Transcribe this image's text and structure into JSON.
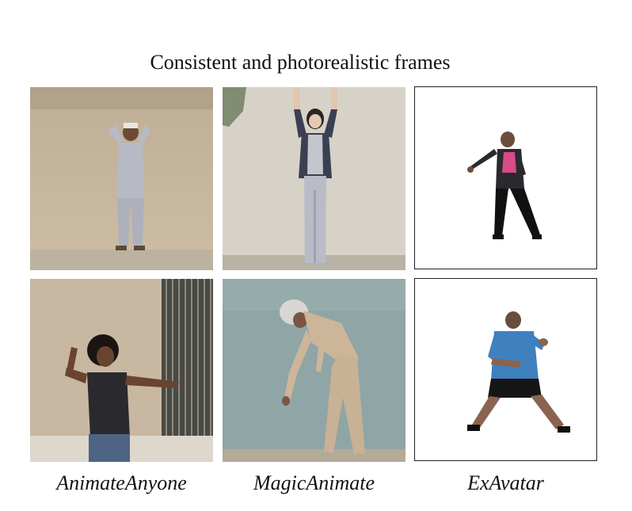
{
  "figure": {
    "title": "Consistent and photorealistic frames",
    "columns": [
      {
        "label": "AnimateAnyone"
      },
      {
        "label": "MagicAnimate"
      },
      {
        "label": "ExAvatar"
      }
    ]
  },
  "colors": {
    "wall_beige": "#c9b99f",
    "wall_grey": "#d8d4cc",
    "wall_blue": "#8fa6a8",
    "wall_tan": "#c7b79f",
    "white_bg": "#ffffff"
  }
}
